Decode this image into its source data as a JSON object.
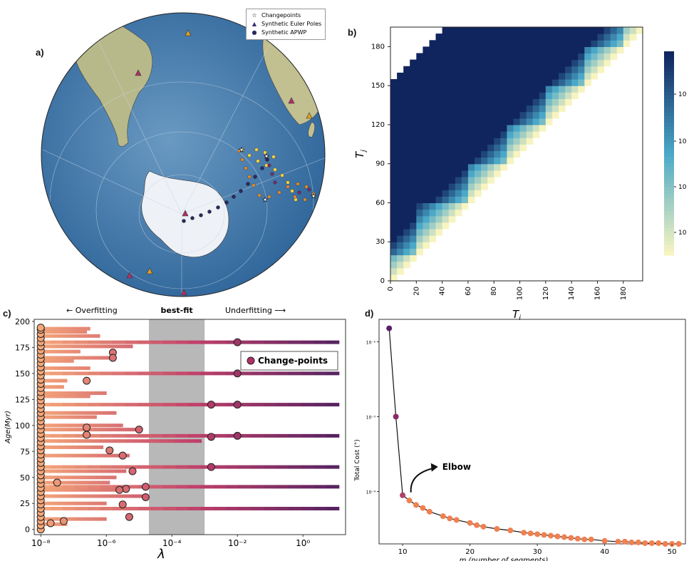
{
  "panels": {
    "a": {
      "label": "a)"
    },
    "b": {
      "label": "b)"
    },
    "c": {
      "label": "c)"
    },
    "d": {
      "label": "d)"
    }
  },
  "map_legend": {
    "items": [
      {
        "symbol": "☆",
        "label": "Changepoints"
      },
      {
        "symbol": "▲",
        "label": "Synthetic Euler Poles"
      },
      {
        "symbol": "●",
        "label": "Synthetic APWP"
      }
    ]
  },
  "colors": {
    "ocean": "#4a7fb0",
    "land": "#c8c59a",
    "apwp": "#2a2a5e",
    "pole": "#e0a020",
    "matrix_dark": "#10245e",
    "salmon": "#f5a77a",
    "purple": "#5a1f6a",
    "grey_band": "#b8b8b8"
  },
  "chart_data": [
    {
      "type": "heatmap",
      "panel": "b",
      "xlabel": "T_i",
      "ylabel": "T_j",
      "xticks": [
        0,
        20,
        40,
        60,
        80,
        100,
        120,
        140,
        160,
        180
      ],
      "yticks": [
        0,
        30,
        60,
        90,
        120,
        150,
        180
      ],
      "xlim": [
        0,
        195
      ],
      "ylim": [
        0,
        195
      ],
      "step_breaks": [
        20,
        60,
        90,
        120,
        150,
        180
      ],
      "colorbar_ticks": [
        "10",
        "10",
        "10",
        "10"
      ]
    },
    {
      "type": "line",
      "panel": "c",
      "title_left": "← Overfitting",
      "title_mid": "best-fit",
      "title_right": "Underfitting ⟶",
      "xlabel": "λ",
      "ylabel": "Age(Myr)",
      "xscale": "log",
      "xlim_exp": [
        -8.2,
        1.3
      ],
      "ylim": [
        -5,
        202
      ],
      "yticks": [
        0,
        25,
        50,
        75,
        100,
        125,
        150,
        175,
        200
      ],
      "xtick_exps": [
        -8,
        -6,
        -4,
        -2,
        0
      ],
      "xtick_labels": [
        "10⁻⁸",
        "10⁻⁶",
        "10⁻⁴",
        "10⁻²",
        "10⁰"
      ],
      "best_fit_band_exp": [
        -4.7,
        -3.0
      ],
      "legend": "Change-points",
      "long_lines": [
        {
          "age": 180,
          "end_exp": 1.1
        },
        {
          "age": 150,
          "end_exp": 1.1
        },
        {
          "age": 120,
          "end_exp": 1.1
        },
        {
          "age": 90,
          "end_exp": 1.1
        },
        {
          "age": 60,
          "end_exp": 1.1
        },
        {
          "age": 41,
          "end_exp": 1.1
        },
        {
          "age": 20,
          "end_exp": 1.1
        }
      ],
      "short_lines": [
        {
          "age": 193,
          "end_exp": -6.5
        },
        {
          "age": 190,
          "end_exp": -6.6
        },
        {
          "age": 186,
          "end_exp": -6.2
        },
        {
          "age": 176,
          "end_exp": -5.2
        },
        {
          "age": 171,
          "end_exp": -6.8
        },
        {
          "age": 165,
          "end_exp": -5.7
        },
        {
          "age": 162,
          "end_exp": -7.0
        },
        {
          "age": 155,
          "end_exp": -6.5
        },
        {
          "age": 143,
          "end_exp": -7.2
        },
        {
          "age": 137,
          "end_exp": -7.3
        },
        {
          "age": 131,
          "end_exp": -6.0
        },
        {
          "age": 128,
          "end_exp": -6.5
        },
        {
          "age": 112,
          "end_exp": -5.7
        },
        {
          "age": 108,
          "end_exp": -6.3
        },
        {
          "age": 100,
          "end_exp": -5.5
        },
        {
          "age": 96,
          "end_exp": -5.1
        },
        {
          "age": 85,
          "end_exp": -3.1
        },
        {
          "age": 79,
          "end_exp": -6.1
        },
        {
          "age": 71,
          "end_exp": -5.3
        },
        {
          "age": 56,
          "end_exp": -5.4
        },
        {
          "age": 50,
          "end_exp": -5.7
        },
        {
          "age": 45,
          "end_exp": -5.9
        },
        {
          "age": 38,
          "end_exp": -5.7
        },
        {
          "age": 32,
          "end_exp": -4.9
        },
        {
          "age": 25,
          "end_exp": -6.0
        },
        {
          "age": 10,
          "end_exp": -6.0
        },
        {
          "age": 5,
          "end_exp": -7.2
        }
      ],
      "change_points": [
        {
          "exp": -2.0,
          "age": 180
        },
        {
          "exp": -2.0,
          "age": 150
        },
        {
          "exp": -2.0,
          "age": 120
        },
        {
          "exp": -2.8,
          "age": 120
        },
        {
          "exp": -2.0,
          "age": 90
        },
        {
          "exp": -2.8,
          "age": 89
        },
        {
          "exp": -2.8,
          "age": 60
        },
        {
          "exp": -5.8,
          "age": 170
        },
        {
          "exp": -5.8,
          "age": 165
        },
        {
          "exp": -6.6,
          "age": 143
        },
        {
          "exp": -5.0,
          "age": 96
        },
        {
          "exp": -6.6,
          "age": 98
        },
        {
          "exp": -6.6,
          "age": 91
        },
        {
          "exp": -5.9,
          "age": 76
        },
        {
          "exp": -5.5,
          "age": 71
        },
        {
          "exp": -5.2,
          "age": 56
        },
        {
          "exp": -4.8,
          "age": 41
        },
        {
          "exp": -5.4,
          "age": 39
        },
        {
          "exp": -5.6,
          "age": 38
        },
        {
          "exp": -4.8,
          "age": 31
        },
        {
          "exp": -5.5,
          "age": 24
        },
        {
          "exp": -5.3,
          "age": 12
        },
        {
          "exp": -7.3,
          "age": 8
        },
        {
          "exp": -7.7,
          "age": 6
        },
        {
          "exp": -7.5,
          "age": 45
        }
      ],
      "column_points_exp": -8.0,
      "column_points_ages": [
        0,
        4,
        8,
        12,
        16,
        20,
        24,
        28,
        32,
        36,
        40,
        44,
        48,
        52,
        56,
        60,
        64,
        68,
        72,
        76,
        80,
        84,
        88,
        92,
        96,
        100,
        104,
        108,
        112,
        116,
        120,
        124,
        128,
        132,
        136,
        140,
        144,
        148,
        152,
        156,
        160,
        164,
        168,
        172,
        176,
        180,
        184,
        188,
        192,
        194
      ]
    },
    {
      "type": "scatter",
      "panel": "d",
      "xlabel": "m (number of segments)",
      "ylabel": "Total Cost (°)",
      "yscale": "log",
      "xlim": [
        6.5,
        52
      ],
      "ylim_exp": [
        -4.7,
        -1.7
      ],
      "xticks": [
        10,
        20,
        30,
        40,
        50
      ],
      "ytick_exps": [
        -4,
        -3,
        -2
      ],
      "ytick_labels": [
        "10⁻⁴",
        "10⁻³",
        "10⁻²"
      ],
      "annotation": "Elbow",
      "x": [
        8,
        9,
        10,
        11,
        12,
        13,
        14,
        16,
        17,
        18,
        20,
        21,
        22,
        24,
        26,
        28,
        29,
        30,
        31,
        32,
        33,
        34,
        35,
        36,
        37,
        38,
        40,
        42,
        43,
        44,
        45,
        46,
        47,
        48,
        49,
        50,
        51
      ],
      "y_exp": [
        -1.82,
        -3.0,
        -4.05,
        -4.12,
        -4.18,
        -4.22,
        -4.27,
        -4.33,
        -4.36,
        -4.38,
        -4.42,
        -4.45,
        -4.47,
        -4.5,
        -4.52,
        -4.55,
        -4.56,
        -4.57,
        -4.58,
        -4.59,
        -4.6,
        -4.61,
        -4.62,
        -4.63,
        -4.64,
        -4.64,
        -4.66,
        -4.67,
        -4.67,
        -4.68,
        -4.68,
        -4.69,
        -4.69,
        -4.69,
        -4.7,
        -4.7,
        -4.7
      ]
    }
  ]
}
